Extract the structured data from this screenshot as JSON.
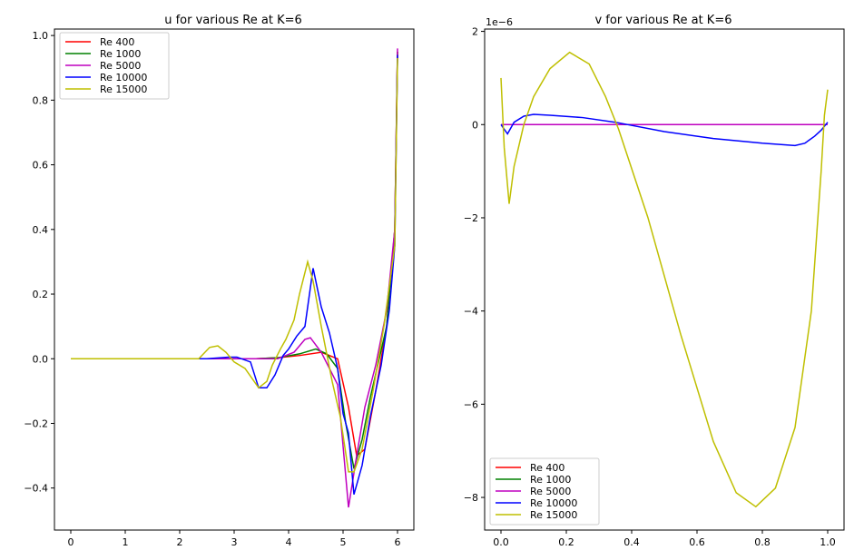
{
  "chart_data": [
    {
      "type": "line",
      "title": "u for various Re at K=6",
      "xlabel": "",
      "ylabel": "",
      "xlim": [
        -0.3,
        6.3
      ],
      "ylim": [
        -0.53,
        1.02
      ],
      "xticks": [
        0,
        1,
        2,
        3,
        4,
        5,
        6
      ],
      "yticks": [
        -0.4,
        -0.2,
        0.0,
        0.2,
        0.4,
        0.6,
        0.8,
        1.0
      ],
      "ytick_labels": [
        "−0.4",
        "−0.2",
        "0.0",
        "0.2",
        "0.4",
        "0.6",
        "0.8",
        "1.0"
      ],
      "legend": "top-left",
      "grid": false,
      "series": [
        {
          "name": "Re 400",
          "color": "#ff0000",
          "x": [
            0,
            1,
            2,
            2.5,
            3,
            3.4,
            3.8,
            4.2,
            4.6,
            4.9,
            5.1,
            5.25,
            5.4,
            5.6,
            5.8,
            5.95,
            6.0
          ],
          "y": [
            0,
            0,
            0,
            0,
            0,
            0,
            0.003,
            0.01,
            0.02,
            0.0,
            -0.15,
            -0.3,
            -0.28,
            -0.1,
            0.1,
            0.4,
            0.95
          ]
        },
        {
          "name": "Re 1000",
          "color": "#008000",
          "x": [
            0,
            1,
            2,
            2.5,
            3,
            3.4,
            3.8,
            4.2,
            4.5,
            4.7,
            4.9,
            5.05,
            5.2,
            5.35,
            5.5,
            5.8,
            5.95,
            6.0
          ],
          "y": [
            0,
            0,
            0,
            0,
            0,
            0,
            0.003,
            0.015,
            0.03,
            0.015,
            -0.03,
            -0.2,
            -0.34,
            -0.25,
            -0.12,
            0.1,
            0.4,
            0.95
          ]
        },
        {
          "name": "Re 5000",
          "color": "#bf00bf",
          "x": [
            0,
            1,
            2,
            2.5,
            3,
            3.4,
            3.8,
            4.1,
            4.3,
            4.4,
            4.6,
            4.9,
            5.1,
            5.25,
            5.4,
            5.6,
            5.8,
            5.95,
            6.0
          ],
          "y": [
            0,
            0,
            0,
            0,
            0,
            0,
            0,
            0.02,
            0.06,
            0.065,
            0.02,
            -0.08,
            -0.46,
            -0.3,
            -0.15,
            -0.02,
            0.15,
            0.4,
            0.96
          ]
        },
        {
          "name": "Re 10000",
          "color": "#0000ff",
          "x": [
            0,
            1,
            2,
            2.5,
            2.9,
            3.05,
            3.3,
            3.45,
            3.6,
            3.75,
            3.9,
            4.0,
            4.15,
            4.3,
            4.45,
            4.6,
            4.75,
            4.9,
            5.0,
            5.1,
            5.2,
            5.35,
            5.5,
            5.7,
            5.85,
            5.95,
            6.0
          ],
          "y": [
            0,
            0,
            0,
            0,
            0.005,
            0.005,
            -0.01,
            -0.09,
            -0.09,
            -0.05,
            0.01,
            0.03,
            0.07,
            0.1,
            0.28,
            0.16,
            0.08,
            -0.03,
            -0.17,
            -0.23,
            -0.42,
            -0.33,
            -0.18,
            -0.02,
            0.15,
            0.35,
            0.94
          ]
        },
        {
          "name": "Re 15000",
          "color": "#bfbf00",
          "x": [
            0,
            1,
            2,
            2.35,
            2.55,
            2.7,
            2.85,
            3.0,
            3.2,
            3.45,
            3.6,
            3.7,
            3.85,
            3.95,
            4.1,
            4.2,
            4.35,
            4.45,
            4.6,
            4.8,
            4.95,
            5.1,
            5.2,
            5.35,
            5.55,
            5.75,
            5.95,
            6.0
          ],
          "y": [
            0,
            0,
            0,
            0,
            0.035,
            0.04,
            0.02,
            -0.01,
            -0.03,
            -0.09,
            -0.07,
            -0.02,
            0.03,
            0.06,
            0.12,
            0.2,
            0.3,
            0.24,
            0.1,
            -0.07,
            -0.18,
            -0.35,
            -0.35,
            -0.28,
            -0.1,
            0.1,
            0.35,
            0.93
          ]
        }
      ]
    },
    {
      "type": "line",
      "title": "v for various Re at K=6",
      "offset_text": "1e−6",
      "xlabel": "",
      "ylabel": "",
      "xlim": [
        -0.05,
        1.05
      ],
      "ylim": [
        -8.7,
        2.05
      ],
      "xticks": [
        0.0,
        0.2,
        0.4,
        0.6,
        0.8,
        1.0
      ],
      "xtick_labels": [
        "0.0",
        "0.2",
        "0.4",
        "0.6",
        "0.8",
        "1.0"
      ],
      "yticks": [
        -8,
        -6,
        -4,
        -2,
        0,
        2
      ],
      "ytick_labels": [
        "−8",
        "−6",
        "−4",
        "−2",
        "0",
        "2"
      ],
      "legend": "bottom-left",
      "grid": false,
      "series": [
        {
          "name": "Re 400",
          "color": "#ff0000",
          "x": [
            0.0,
            1.0
          ],
          "y": [
            0,
            0
          ]
        },
        {
          "name": "Re 1000",
          "color": "#008000",
          "x": [
            0.0,
            1.0
          ],
          "y": [
            0,
            0
          ]
        },
        {
          "name": "Re 5000",
          "color": "#bf00bf",
          "x": [
            0.0,
            1.0
          ],
          "y": [
            0,
            0
          ]
        },
        {
          "name": "Re 10000",
          "color": "#0000ff",
          "x": [
            0.0,
            0.02,
            0.04,
            0.07,
            0.1,
            0.15,
            0.25,
            0.35,
            0.5,
            0.65,
            0.8,
            0.9,
            0.93,
            0.96,
            0.98,
            1.0
          ],
          "y": [
            0,
            -0.2,
            0.05,
            0.18,
            0.22,
            0.2,
            0.15,
            0.05,
            -0.15,
            -0.3,
            -0.4,
            -0.45,
            -0.4,
            -0.25,
            -0.12,
            0.05
          ]
        },
        {
          "name": "Re 15000",
          "color": "#bfbf00",
          "x": [
            0.0,
            0.01,
            0.025,
            0.04,
            0.07,
            0.1,
            0.15,
            0.21,
            0.27,
            0.32,
            0.36,
            0.45,
            0.55,
            0.65,
            0.72,
            0.78,
            0.84,
            0.9,
            0.95,
            0.98,
            0.99,
            1.0
          ],
          "y": [
            1.0,
            -0.5,
            -1.7,
            -0.9,
            0.0,
            0.6,
            1.2,
            1.55,
            1.3,
            0.6,
            -0.1,
            -2.0,
            -4.5,
            -6.8,
            -7.9,
            -8.2,
            -7.8,
            -6.5,
            -4.0,
            -1.0,
            0.2,
            0.75
          ]
        }
      ]
    }
  ]
}
